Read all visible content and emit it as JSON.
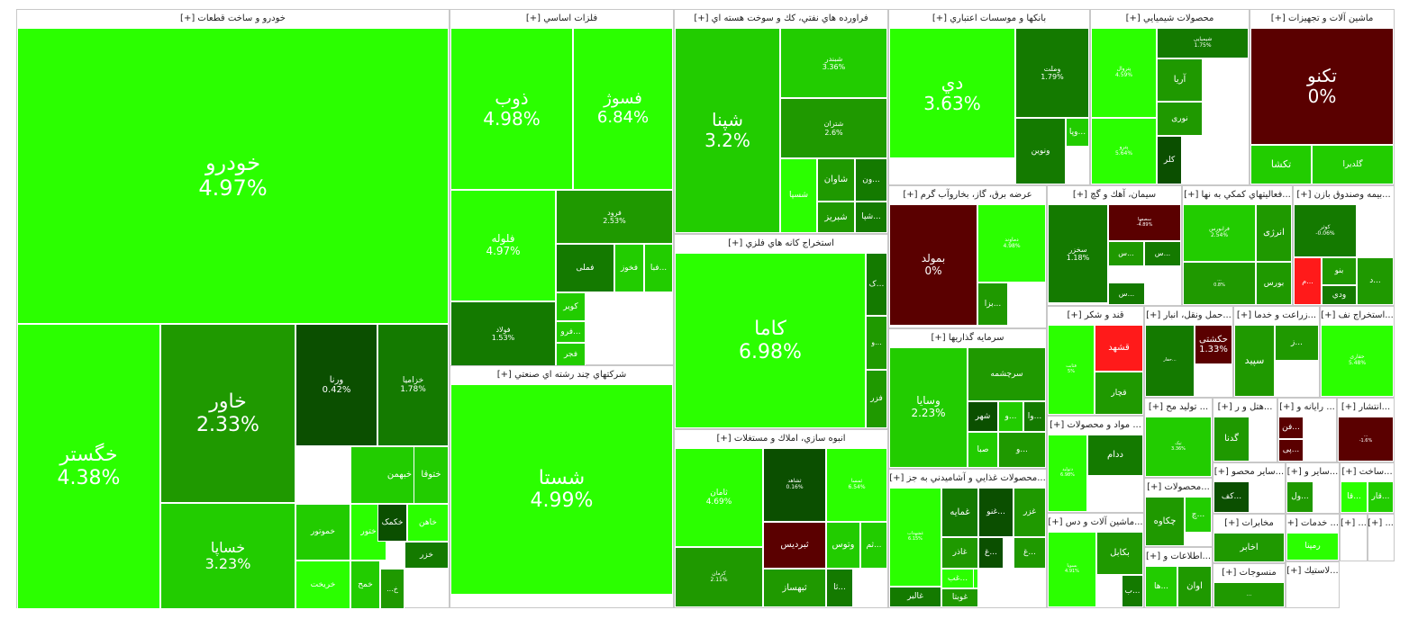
{
  "chart_data": {
    "type": "treemap",
    "colors": {
      "bright": "#2bff00",
      "mid": "#22cc00",
      "green": "#1f9900",
      "deep": "#147a00",
      "dark": "#0b4f00",
      "neg_dark": "#5a0000",
      "neg": "#ff1a1a",
      "border": "#ffffff"
    },
    "sectors": [
      {
        "title": "خودرو و ساخت قطعات [+]",
        "tiles": [
          {
            "symbol": "خودرو",
            "change": "4.97%"
          },
          {
            "symbol": "خگستر",
            "change": "4.38%"
          },
          {
            "symbol": "خاور",
            "change": "2.33%"
          },
          {
            "symbol": "خساپا",
            "change": "3.23%"
          },
          {
            "symbol": "ورنا",
            "change": "0.42%"
          },
          {
            "symbol": "خزامیا",
            "change": "1.78%"
          },
          {
            "symbol": "خبهمن",
            "change": ""
          },
          {
            "symbol": "ختوقا",
            "change": ""
          },
          {
            "symbol": "خموتور",
            "change": ""
          },
          {
            "symbol": "ختور",
            "change": ""
          },
          {
            "symbol": "خکمک",
            "change": ""
          },
          {
            "symbol": "خاهن",
            "change": ""
          },
          {
            "symbol": "خریخت",
            "change": ""
          },
          {
            "symbol": "خمح",
            "change": ""
          },
          {
            "symbol": "خزر",
            "change": ""
          },
          {
            "symbol": "خ...",
            "change": ""
          }
        ]
      },
      {
        "title": "فلزات اساسي [+]",
        "tiles": [
          {
            "symbol": "ذوب",
            "change": "4.98%"
          },
          {
            "symbol": "فسوژ",
            "change": "6.84%"
          },
          {
            "symbol": "فلوله",
            "change": "4.97%"
          },
          {
            "symbol": "فرود",
            "change": "2.53%"
          },
          {
            "symbol": "فولاد",
            "change": "1.53%"
          },
          {
            "symbol": "فملی",
            "change": ""
          },
          {
            "symbol": "فخوز",
            "change": ""
          },
          {
            "symbol": "...فبا",
            "change": ""
          },
          {
            "symbol": "کویر",
            "change": ""
          },
          {
            "symbol": "...فرو",
            "change": ""
          },
          {
            "symbol": "فجر",
            "change": ""
          }
        ]
      },
      {
        "title": "شرکتهاي چند رشته اي صنعتي [+]",
        "tiles": [
          {
            "symbol": "شستا",
            "change": "4.99%"
          }
        ]
      },
      {
        "title": "فراورده هاي نفتي، كك و سوخت هسته اي [+]",
        "tiles": [
          {
            "symbol": "شپنا",
            "change": "3.2%"
          },
          {
            "symbol": "شبندر",
            "change": "3.36%"
          },
          {
            "symbol": "شتران",
            "change": "2.6%"
          },
          {
            "symbol": "شسپا",
            "change": ""
          },
          {
            "symbol": "شاوان",
            "change": ""
          },
          {
            "symbol": "شبریز",
            "change": ""
          },
          {
            "symbol": "...ون",
            "change": ""
          },
          {
            "symbol": "...شپا",
            "change": ""
          }
        ]
      },
      {
        "title": "استخراج کانه هاي فلزي [+]",
        "tiles": [
          {
            "symbol": "کاما",
            "change": "6.98%"
          },
          {
            "symbol": "...ک",
            "change": ""
          },
          {
            "symbol": "...و",
            "change": ""
          },
          {
            "symbol": "فزر",
            "change": ""
          }
        ]
      },
      {
        "title": "انبوه سازي، املاك و مستغلات [+]",
        "tiles": [
          {
            "symbol": "ثامان",
            "change": "4.69%"
          },
          {
            "symbol": "ثشاهد",
            "change": "0.16%"
          },
          {
            "symbol": "ثمسا",
            "change": "6.54%"
          },
          {
            "symbol": "ثبردیس",
            "change": ""
          },
          {
            "symbol": "وتوس",
            "change": ""
          },
          {
            "symbol": "...ثم",
            "change": ""
          },
          {
            "symbol": "کرمان",
            "change": "2.11%"
          },
          {
            "symbol": "ثبهساز",
            "change": ""
          },
          {
            "symbol": "...ثا",
            "change": ""
          }
        ]
      },
      {
        "title": "بانكها و موسسات اعتباري [+]",
        "tiles": [
          {
            "symbol": "دي",
            "change": "3.63%"
          },
          {
            "symbol": "وملت",
            "change": "1.79%"
          },
          {
            "symbol": "ونوین",
            "change": ""
          },
          {
            "symbol": "...وپا",
            "change": ""
          }
        ]
      },
      {
        "title": "محصولات شيميايي [+]",
        "tiles": [
          {
            "symbol": "شیمیایی",
            "change": "1.75%"
          },
          {
            "symbol": "پتروال",
            "change": "4.59%"
          },
          {
            "symbol": "آریا",
            "change": ""
          },
          {
            "symbol": "نوری",
            "change": ""
          },
          {
            "symbol": "کلر",
            "change": ""
          },
          {
            "symbol": "پترو",
            "change": "5.64%"
          }
        ]
      },
      {
        "title": "ماشين آلات و تجهيزات [+]",
        "tiles": [
          {
            "symbol": "تکنو",
            "change": "0%"
          },
          {
            "symbol": "تکشا",
            "change": ""
          },
          {
            "symbol": "گلدیرا",
            "change": ""
          }
        ]
      },
      {
        "title": "عرضه برق، گاز، بخاروآب گرم [+]",
        "tiles": [
          {
            "symbol": "بمولد",
            "change": "0%"
          },
          {
            "symbol": "دماوند",
            "change": "4.98%"
          },
          {
            "symbol": "...بزا",
            "change": ""
          }
        ]
      },
      {
        "title": "سيمان، آهك و گچ [+]",
        "tiles": [
          {
            "symbol": "سخزر",
            "change": "1.18%"
          },
          {
            "symbol": "سصفها",
            "change": "-4.89%"
          },
          {
            "symbol": "...س",
            "change": ""
          },
          {
            "symbol": "...س",
            "change": ""
          },
          {
            "symbol": "...س",
            "change": ""
          }
        ]
      },
      {
        "title": "...فعاليتهاي كمكي به نها [+]",
        "tiles": [
          {
            "symbol": "فرابورس",
            "change": "2.54%"
          },
          {
            "symbol": "انرژی",
            "change": ""
          },
          {
            "symbol": "بورس",
            "change": ""
          },
          {
            "symbol": "...",
            "change": "0.8%"
          }
        ]
      },
      {
        "title": "...بيمه وصندوق بازن [+]",
        "tiles": [
          {
            "symbol": "کوثر",
            "change": "-0.06%"
          },
          {
            "symbol": "...م",
            "change": ""
          },
          {
            "symbol": "بنو",
            "change": ""
          },
          {
            "symbol": "...د",
            "change": ""
          },
          {
            "symbol": "ودي",
            "change": ""
          }
        ]
      },
      {
        "title": "سرمايه گذاريها [+]",
        "tiles": [
          {
            "symbol": "وسایا",
            "change": "2.23%"
          },
          {
            "symbol": "سرچشمه",
            "change": ""
          },
          {
            "symbol": "شهر",
            "change": ""
          },
          {
            "symbol": "...و",
            "change": ""
          },
          {
            "symbol": "...وا",
            "change": ""
          },
          {
            "symbol": "صبا",
            "change": ""
          },
          {
            "symbol": "...و",
            "change": ""
          }
        ]
      },
      {
        "title": "قند و شكر [+]",
        "tiles": [
          {
            "symbol": "قشهد",
            "change": ""
          },
          {
            "symbol": "قچار",
            "change": ""
          },
          {
            "symbol": "قثابت",
            "change": "5%"
          }
        ]
      },
      {
        "title": "...حمل ونقل، انبار [+]",
        "tiles": [
          {
            "symbol": "...حفار",
            "change": ""
          },
          {
            "symbol": "حکشتی",
            "change": "1.33%"
          }
        ]
      },
      {
        "title": "...زراعت و خدما [+]",
        "tiles": [
          {
            "symbol": "سپید",
            "change": ""
          },
          {
            "symbol": "...ز",
            "change": ""
          }
        ]
      },
      {
        "title": "...استخراج نف [+]",
        "tiles": [
          {
            "symbol": "حفاری",
            "change": "5.48%"
          }
        ]
      },
      {
        "title": "...محصولات غذايي و آشاميدني به جز [+]",
        "tiles": [
          {
            "symbol": "غشهداب",
            "change": "6.15%"
          },
          {
            "symbol": "غمایه",
            "change": ""
          },
          {
            "symbol": "...غنو",
            "change": ""
          },
          {
            "symbol": "غزر",
            "change": ""
          },
          {
            "symbol": "...غ",
            "change": ""
          },
          {
            "symbol": "غاذر",
            "change": ""
          },
          {
            "symbol": "...غ",
            "change": ""
          },
          {
            "symbol": "...غد",
            "change": ""
          },
          {
            "symbol": "غوبتا",
            "change": ""
          },
          {
            "symbol": "...غب",
            "change": ""
          },
          {
            "symbol": "غالبر",
            "change": ""
          }
        ]
      },
      {
        "title": "... مواد و محصولات [+]",
        "tiles": [
          {
            "symbol": "ددام",
            "change": ""
          },
          {
            "symbol": "دتولید",
            "change": "6.98%"
          }
        ]
      },
      {
        "title": "...ماشين آلات و دس [+]",
        "tiles": [
          {
            "symbol": "بکابل",
            "change": ""
          },
          {
            "symbol": "بسوپا",
            "change": "4.91%"
          },
          {
            "symbol": "...ب",
            "change": ""
          }
        ]
      },
      {
        "title": "... توليد مح [+]",
        "tiles": [
          {
            "symbol": "تیک",
            "change": "3.36%"
          }
        ]
      },
      {
        "title": "...هتل و ر [+]",
        "tiles": [
          {
            "symbol": "گدنا",
            "change": ""
          }
        ]
      },
      {
        "title": "... رايانه و [+]",
        "tiles": [
          {
            "symbol": "...فن",
            "change": ""
          },
          {
            "symbol": "...پی",
            "change": ""
          }
        ]
      },
      {
        "title": "...انتشار [+]",
        "tiles": [
          {
            "symbol": "...",
            "change": "-1.6%"
          }
        ]
      },
      {
        "title": "...محصولات [+]",
        "tiles": [
          {
            "symbol": "چکاوه",
            "change": ""
          },
          {
            "symbol": "...چ",
            "change": ""
          }
        ]
      },
      {
        "title": "...اطلاعات و [+]",
        "tiles": [
          {
            "symbol": "اوان",
            "change": ""
          },
          {
            "symbol": "...ها",
            "change": ""
          }
        ]
      },
      {
        "title": "...ساير محصو [+]",
        "tiles": [
          {
            "symbol": "...کف",
            "change": ""
          }
        ]
      },
      {
        "title": "...ساير و [+]",
        "tiles": [
          {
            "symbol": "...ول",
            "change": ""
          }
        ]
      },
      {
        "title": "...ساخت [+]",
        "tiles": [
          {
            "symbol": "...قار",
            "change": ""
          },
          {
            "symbol": "...قا",
            "change": ""
          }
        ]
      },
      {
        "title": "مخابرات [+]",
        "tiles": [
          {
            "symbol": "اخابر",
            "change": ""
          }
        ]
      },
      {
        "title": "منسوجات [+]",
        "tiles": [
          {
            "symbol": "...",
            "change": ""
          }
        ]
      },
      {
        "title": "... خدمات [+]",
        "tiles": [
          {
            "symbol": "رمپنا",
            "change": ""
          }
        ]
      },
      {
        "title": "...لاستيك [+]",
        "tiles": []
      },
      {
        "title": "... [+]",
        "tiles": []
      },
      {
        "title": "... [+]",
        "tiles": []
      }
    ]
  }
}
